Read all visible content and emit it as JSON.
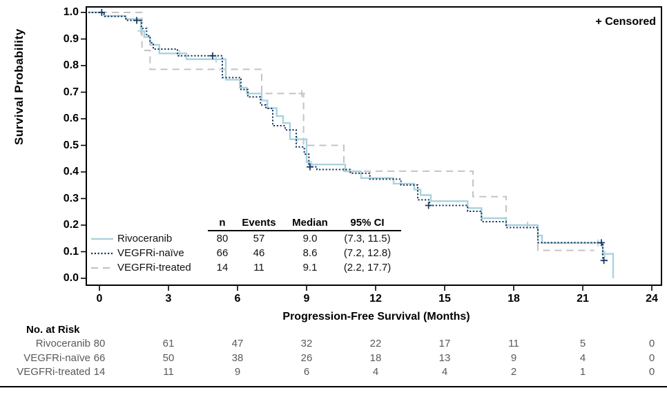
{
  "censored_label": "+ Censored",
  "y_axis": {
    "title": "Survival Probability",
    "ticks": [
      "1.0",
      "0.9",
      "0.8",
      "0.7",
      "0.6",
      "0.5",
      "0.4",
      "0.3",
      "0.2",
      "0.1",
      "0.0"
    ]
  },
  "x_axis": {
    "title": "Progression-Free Survival (Months)",
    "ticks": [
      "0",
      "3",
      "6",
      "9",
      "12",
      "15",
      "18",
      "21",
      "24"
    ]
  },
  "legend": {
    "columns": [
      "n",
      "Events",
      "Median",
      "95% CI"
    ],
    "rows": [
      {
        "name": "Rivoceranib",
        "n": "80",
        "events": "57",
        "median": "9.0",
        "ci": "(7.3, 11.5)"
      },
      {
        "name": "VEGFRi-naïve",
        "n": "66",
        "events": "46",
        "median": "8.6",
        "ci": "(7.2, 12.8)"
      },
      {
        "name": "VEGFRi-treated",
        "n": "14",
        "events": "11",
        "median": "9.1",
        "ci": "(2.2, 17.7)"
      }
    ]
  },
  "risk_table": {
    "title": "No. at Risk",
    "rows": [
      {
        "name": "Rivoceranib",
        "values": [
          "80",
          "61",
          "47",
          "32",
          "22",
          "17",
          "11",
          "5",
          "0"
        ]
      },
      {
        "name": "VEGFRi-naïve",
        "values": [
          "66",
          "50",
          "38",
          "26",
          "18",
          "13",
          "9",
          "4",
          "0"
        ]
      },
      {
        "name": "VEGFRi-treated",
        "values": [
          "14",
          "11",
          "9",
          "6",
          "4",
          "4",
          "2",
          "1",
          "0"
        ]
      }
    ]
  },
  "chart_data": {
    "type": "line",
    "subtype": "kaplan-meier-step",
    "title": "",
    "xlabel": "Progression-Free Survival (Months)",
    "ylabel": "Survival Probability",
    "xlim": [
      0,
      24
    ],
    "ylim": [
      0.0,
      1.0
    ],
    "x_tick_step": 3,
    "y_tick_step": 0.1,
    "grid": false,
    "legend_position": "inside-lower-left",
    "series": [
      {
        "name": "Rivoceranib",
        "color": "#a9d2de",
        "style": "solid",
        "n": 80,
        "events": 57,
        "median": 9.0,
        "ci_95": [
          7.3,
          11.5
        ],
        "points": [
          [
            0,
            1.0
          ],
          [
            0.2,
            0.987
          ],
          [
            1.15,
            0.975
          ],
          [
            1.8,
            0.93
          ],
          [
            1.95,
            0.907
          ],
          [
            2.2,
            0.878
          ],
          [
            2.6,
            0.846
          ],
          [
            3.78,
            0.824
          ],
          [
            5.49,
            0.747
          ],
          [
            6.1,
            0.717
          ],
          [
            6.4,
            0.695
          ],
          [
            7.05,
            0.669
          ],
          [
            7.3,
            0.64
          ],
          [
            7.7,
            0.61
          ],
          [
            7.98,
            0.584
          ],
          [
            8.28,
            0.523
          ],
          [
            9.0,
            0.437
          ],
          [
            9.12,
            0.428
          ],
          [
            10.68,
            0.402
          ],
          [
            11.37,
            0.377
          ],
          [
            12.78,
            0.356
          ],
          [
            13.68,
            0.334
          ],
          [
            13.95,
            0.313
          ],
          [
            14.4,
            0.29
          ],
          [
            16.0,
            0.264
          ],
          [
            16.6,
            0.226
          ],
          [
            17.67,
            0.2
          ],
          [
            19.05,
            0.161
          ],
          [
            19.23,
            0.133
          ],
          [
            21.87,
            0.092
          ],
          [
            22.32,
            0.0
          ]
        ],
        "end_month": 22.32,
        "censors": [
          [
            1.8,
            0.93
          ],
          [
            3.48,
            0.846
          ],
          [
            5.07,
            0.824
          ],
          [
            8.58,
            0.523
          ],
          [
            9.2,
            0.428
          ],
          [
            21.66,
            0.133
          ],
          [
            21.95,
            0.092
          ]
        ]
      },
      {
        "name": "VEGFRi-naïve",
        "color": "#16365f",
        "style": "dotted",
        "n": 66,
        "events": 46,
        "median": 8.6,
        "ci_95": [
          7.2,
          12.8
        ],
        "points": [
          [
            0,
            1.0
          ],
          [
            0.2,
            0.985
          ],
          [
            1.15,
            0.97
          ],
          [
            1.83,
            0.94
          ],
          [
            2.05,
            0.912
          ],
          [
            2.2,
            0.886
          ],
          [
            2.34,
            0.862
          ],
          [
            3.39,
            0.837
          ],
          [
            5.34,
            0.755
          ],
          [
            6.15,
            0.71
          ],
          [
            6.45,
            0.682
          ],
          [
            7.0,
            0.652
          ],
          [
            7.23,
            0.639
          ],
          [
            7.53,
            0.574
          ],
          [
            8.07,
            0.558
          ],
          [
            8.55,
            0.494
          ],
          [
            8.9,
            0.467
          ],
          [
            9.1,
            0.419
          ],
          [
            9.45,
            0.409
          ],
          [
            10.9,
            0.395
          ],
          [
            11.75,
            0.373
          ],
          [
            13.1,
            0.351
          ],
          [
            13.83,
            0.295
          ],
          [
            14.34,
            0.274
          ],
          [
            16.0,
            0.252
          ],
          [
            16.6,
            0.213
          ],
          [
            17.67,
            0.191
          ],
          [
            19.05,
            0.134
          ],
          [
            21.87,
            0.067
          ]
        ],
        "end_month": 22.15,
        "censors": [
          [
            0.1,
            1.0
          ],
          [
            1.62,
            0.97
          ],
          [
            4.92,
            0.837
          ],
          [
            9.15,
            0.419
          ],
          [
            14.3,
            0.274
          ],
          [
            21.81,
            0.134
          ],
          [
            21.92,
            0.067
          ]
        ]
      },
      {
        "name": "VEGFRi-treated",
        "color": "#c3c3c3",
        "style": "dashed",
        "n": 14,
        "events": 11,
        "median": 9.1,
        "ci_95": [
          2.2,
          17.7
        ],
        "points": [
          [
            0,
            1.0
          ],
          [
            1.85,
            0.857
          ],
          [
            2.2,
            0.786
          ],
          [
            7.05,
            0.695
          ],
          [
            8.87,
            0.5
          ],
          [
            10.62,
            0.403
          ],
          [
            16.23,
            0.307
          ],
          [
            17.67,
            0.2
          ],
          [
            19.05,
            0.105
          ]
        ],
        "end_month": 21.5,
        "censors": [
          [
            8.79,
            0.695
          ],
          [
            18.6,
            0.2
          ]
        ]
      }
    ],
    "risk_table_times": [
      0,
      3,
      6,
      9,
      12,
      15,
      18,
      21,
      24
    ]
  }
}
